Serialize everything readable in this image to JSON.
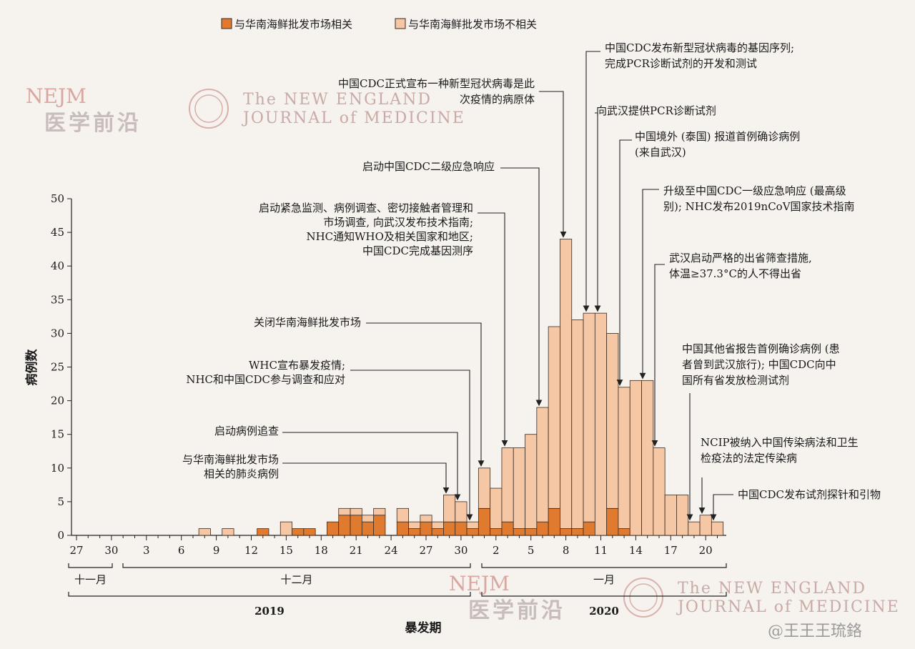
{
  "legend": [
    {
      "label": "与华南海鲜批发市场相关",
      "color": "#e07a2e"
    },
    {
      "label": "与华南海鲜批发市场不相关",
      "color": "#f6c7a4"
    }
  ],
  "colors": {
    "related": "#e07a2e",
    "unrelated": "#f6c7a4",
    "stroke": "#3a2a20"
  },
  "watermarks": {
    "nejm_logo": "NEJM",
    "nejm_cn": "医学前沿",
    "journal_line1": "The NEW ENGLAND",
    "journal_line2": "JOURNAL of MEDICINE",
    "credit": "@王王王琉鉻"
  },
  "chart_data": {
    "type": "bar",
    "stacked": true,
    "ylabel": "病例数",
    "xlabel": "暴发期",
    "ylim": [
      0,
      50
    ],
    "y_ticks": [
      0,
      5,
      10,
      15,
      20,
      25,
      30,
      35,
      40,
      45,
      50
    ],
    "x_start_label": "2019-11-27",
    "x_tick_labels": [
      "27",
      "30",
      "3",
      "6",
      "9",
      "12",
      "15",
      "18",
      "21",
      "24",
      "27",
      "30",
      "2",
      "5",
      "8",
      "11",
      "14",
      "17",
      "20"
    ],
    "month_labels": [
      "十一月",
      "十二月",
      "一月"
    ],
    "year_labels": [
      "2019",
      "2020"
    ],
    "series": [
      {
        "name": "与华南海鲜批发市场相关"
      },
      {
        "name": "与华南海鲜批发市场不相关"
      }
    ],
    "bars": [
      {
        "date": "2019-12-08",
        "related": 0,
        "unrelated": 1
      },
      {
        "date": "2019-12-10",
        "related": 0,
        "unrelated": 1
      },
      {
        "date": "2019-12-13",
        "related": 1,
        "unrelated": 0
      },
      {
        "date": "2019-12-15",
        "related": 0,
        "unrelated": 2
      },
      {
        "date": "2019-12-16",
        "related": 1,
        "unrelated": 0
      },
      {
        "date": "2019-12-17",
        "related": 1,
        "unrelated": 0
      },
      {
        "date": "2019-12-19",
        "related": 2,
        "unrelated": 0
      },
      {
        "date": "2019-12-20",
        "related": 3,
        "unrelated": 1
      },
      {
        "date": "2019-12-21",
        "related": 3,
        "unrelated": 1
      },
      {
        "date": "2019-12-22",
        "related": 2,
        "unrelated": 1
      },
      {
        "date": "2019-12-23",
        "related": 3,
        "unrelated": 1
      },
      {
        "date": "2019-12-25",
        "related": 2,
        "unrelated": 2
      },
      {
        "date": "2019-12-26",
        "related": 1,
        "unrelated": 1
      },
      {
        "date": "2019-12-27",
        "related": 2,
        "unrelated": 1
      },
      {
        "date": "2019-12-28",
        "related": 1,
        "unrelated": 1
      },
      {
        "date": "2019-12-29",
        "related": 2,
        "unrelated": 4
      },
      {
        "date": "2019-12-30",
        "related": 2,
        "unrelated": 3
      },
      {
        "date": "2019-12-31",
        "related": 1,
        "unrelated": 1
      },
      {
        "date": "2020-01-01",
        "related": 4,
        "unrelated": 6
      },
      {
        "date": "2020-01-02",
        "related": 1,
        "unrelated": 6
      },
      {
        "date": "2020-01-03",
        "related": 2,
        "unrelated": 11
      },
      {
        "date": "2020-01-04",
        "related": 1,
        "unrelated": 12
      },
      {
        "date": "2020-01-05",
        "related": 1,
        "unrelated": 14
      },
      {
        "date": "2020-01-06",
        "related": 2,
        "unrelated": 17
      },
      {
        "date": "2020-01-07",
        "related": 4,
        "unrelated": 27
      },
      {
        "date": "2020-01-08",
        "related": 1,
        "unrelated": 43
      },
      {
        "date": "2020-01-09",
        "related": 1,
        "unrelated": 31
      },
      {
        "date": "2020-01-10",
        "related": 2,
        "unrelated": 31
      },
      {
        "date": "2020-01-11",
        "related": 0,
        "unrelated": 33
      },
      {
        "date": "2020-01-12",
        "related": 4,
        "unrelated": 26
      },
      {
        "date": "2020-01-13",
        "related": 1,
        "unrelated": 21
      },
      {
        "date": "2020-01-14",
        "related": 0,
        "unrelated": 23
      },
      {
        "date": "2020-01-15",
        "related": 0,
        "unrelated": 23
      },
      {
        "date": "2020-01-16",
        "related": 0,
        "unrelated": 13
      },
      {
        "date": "2020-01-17",
        "related": 0,
        "unrelated": 6
      },
      {
        "date": "2020-01-18",
        "related": 0,
        "unrelated": 6
      },
      {
        "date": "2020-01-19",
        "related": 0,
        "unrelated": 2
      },
      {
        "date": "2020-01-20",
        "related": 0,
        "unrelated": 3
      },
      {
        "date": "2020-01-21",
        "related": 0,
        "unrelated": 2
      }
    ],
    "annotations": [
      {
        "lines": [
          "与华南海鲜批发市场",
          "相关的肺炎病例"
        ],
        "date": "2019-12-29"
      },
      {
        "lines": [
          "启动病例追查"
        ],
        "date": "2019-12-30"
      },
      {
        "lines": [
          "WHC宣布暴发疫情;",
          "NHC和中国CDC参与调查和应对"
        ],
        "date": "2019-12-31"
      },
      {
        "lines": [
          "关闭华南海鲜批发市场"
        ],
        "date": "2020-01-01"
      },
      {
        "lines": [
          "启动紧急监测、病例调查、密切接触者管理和",
          "市场调查, 向武汉发布技术指南;",
          "NHC通知WHO及相关国家和地区;",
          "中国CDC完成基因测序"
        ],
        "date": "2020-01-03"
      },
      {
        "lines": [
          "启动中国CDC二级应急响应"
        ],
        "date": "2020-01-06"
      },
      {
        "lines": [
          "中国CDC正式宣布一种新型冠状病毒是此",
          "次疫情的病原体"
        ],
        "date": "2020-01-08"
      },
      {
        "lines": [
          "中国CDC发布新型冠状病毒的基因序列;",
          "完成PCR诊断试剂的开发和测试"
        ],
        "date": "2020-01-10"
      },
      {
        "lines": [
          "向武汉提供PCR诊断试剂"
        ],
        "date": "2020-01-11"
      },
      {
        "lines": [
          "中国境外 (泰国) 报道首例确诊病例",
          "(来自武汉)"
        ],
        "date": "2020-01-13"
      },
      {
        "lines": [
          "升级至中国CDC一级应急响应 (最高级",
          "别); NHC发布2019nCoV国家技术指南"
        ],
        "date": "2020-01-15"
      },
      {
        "lines": [
          "武汉启动严格的出省筛查措施,",
          "体温≥37.3°C的人不得出省"
        ],
        "date": "2020-01-16"
      },
      {
        "lines": [
          "中国其他省报告首例确诊病例 (患",
          "者曾到武汉旅行); 中国CDC向中",
          "国所有省发放检测试剂"
        ],
        "date": "2020-01-19"
      },
      {
        "lines": [
          "NCIP被纳入中国传染病法和卫生",
          "检疫法的法定传染病"
        ],
        "date": "2020-01-20"
      },
      {
        "lines": [
          "中国CDC发布试剂探针和引物"
        ],
        "date": "2020-01-21"
      }
    ]
  }
}
